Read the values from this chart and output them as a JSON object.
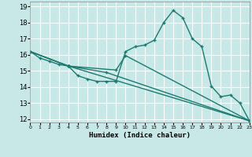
{
  "title": "",
  "xlabel": "Humidex (Indice chaleur)",
  "bg_color": "#c8e8e8",
  "grid_color": "#ffffff",
  "line_color": "#1a7a6e",
  "xlim": [
    0,
    23
  ],
  "ylim": [
    11.8,
    19.3
  ],
  "xticks": [
    0,
    1,
    2,
    3,
    4,
    5,
    6,
    7,
    8,
    9,
    10,
    11,
    12,
    13,
    14,
    15,
    16,
    17,
    18,
    19,
    20,
    21,
    22,
    23
  ],
  "yticks": [
    12,
    13,
    14,
    15,
    16,
    17,
    18,
    19
  ],
  "series": [
    {
      "x": [
        0,
        1,
        2,
        3,
        4,
        5,
        6,
        7,
        8,
        9,
        10,
        11,
        12,
        13,
        14,
        15,
        16,
        17,
        18,
        19,
        20,
        21,
        22,
        23
      ],
      "y": [
        16.2,
        15.8,
        15.6,
        15.4,
        15.3,
        14.7,
        14.5,
        14.35,
        14.35,
        14.35,
        16.2,
        16.5,
        16.6,
        16.9,
        18.0,
        18.75,
        18.3,
        17.0,
        16.5,
        14.05,
        13.4,
        13.5,
        13.0,
        11.9
      ]
    },
    {
      "x": [
        0,
        4,
        9,
        10,
        23
      ],
      "y": [
        16.2,
        15.3,
        15.05,
        15.95,
        11.9
      ]
    },
    {
      "x": [
        0,
        4,
        8,
        23
      ],
      "y": [
        16.2,
        15.3,
        14.9,
        11.9
      ]
    },
    {
      "x": [
        0,
        4,
        23
      ],
      "y": [
        16.2,
        15.3,
        11.9
      ]
    }
  ]
}
